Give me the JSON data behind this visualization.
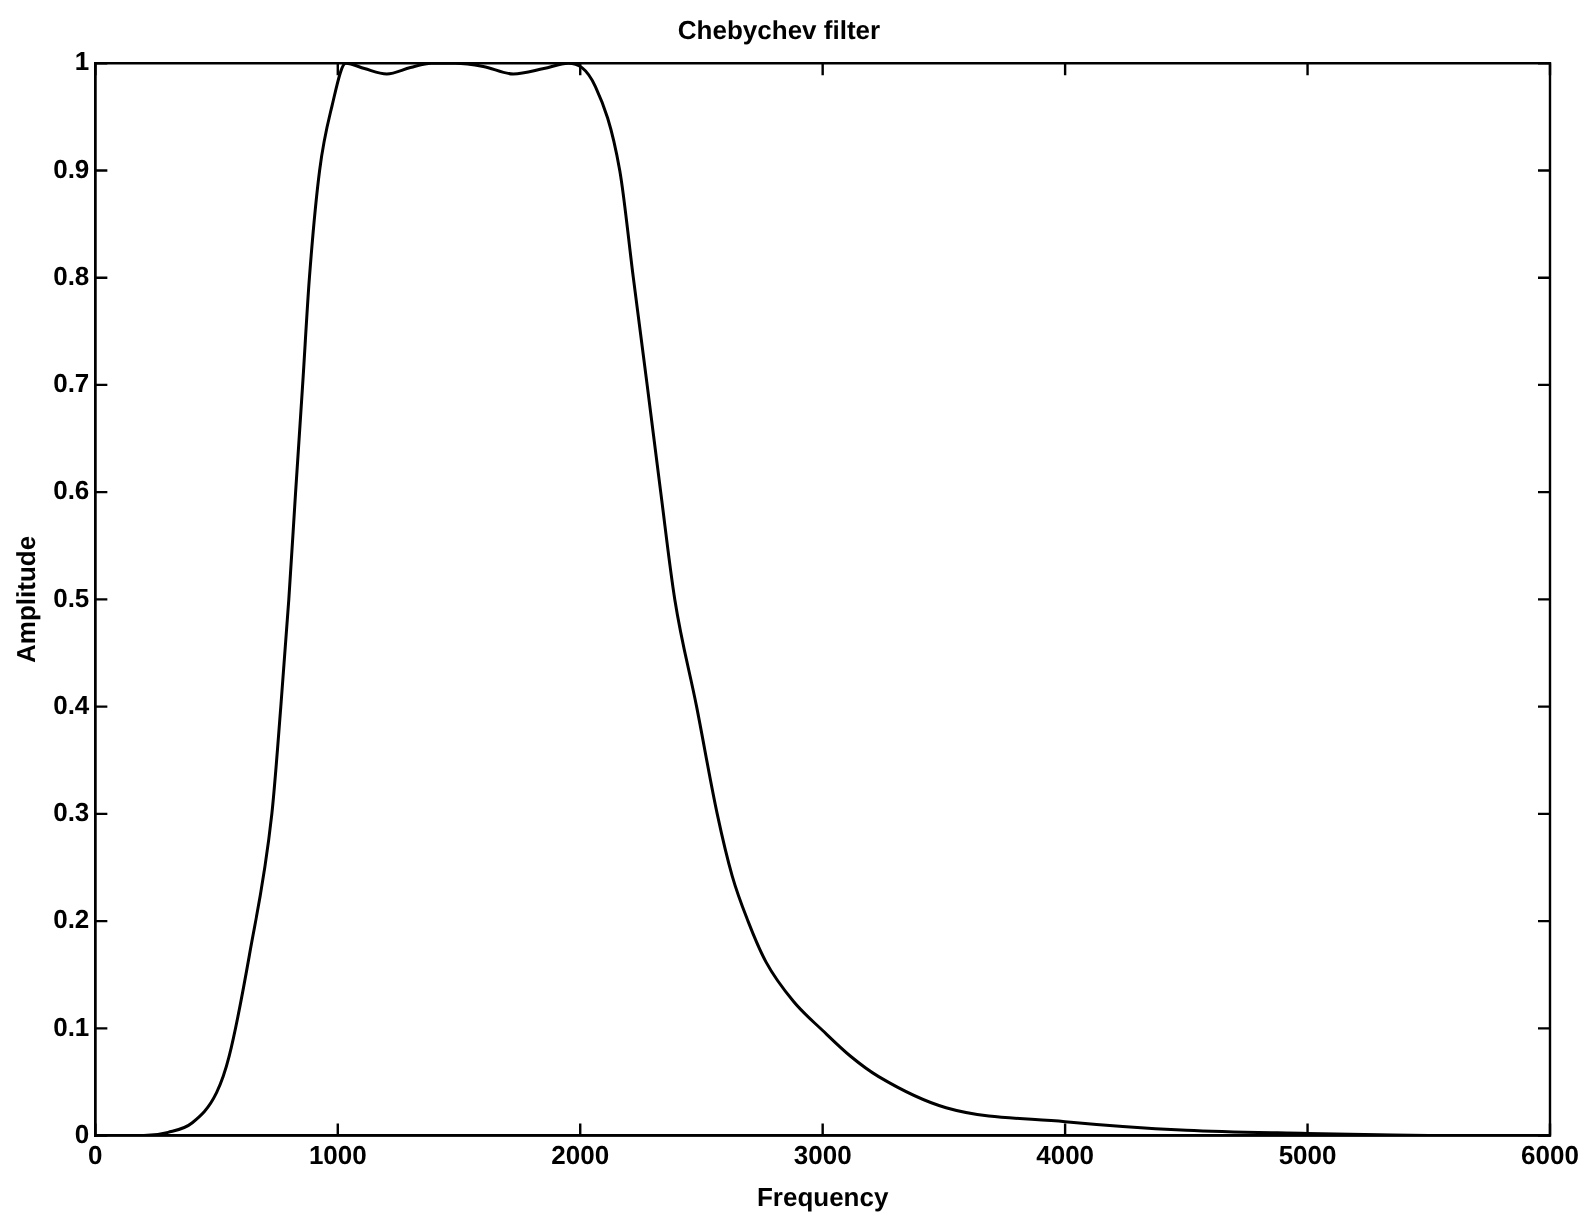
{
  "chart_data": {
    "type": "line",
    "title": "Chebychev filter",
    "xlabel": "Frequency",
    "ylabel": "Amplitude",
    "x": [
      0,
      200,
      300,
      400,
      500,
      552,
      636,
      728,
      765,
      798,
      826,
      855,
      883,
      925,
      976,
      1033,
      1110,
      1202,
      1300,
      1386,
      1484,
      1600,
      1724,
      1850,
      1951,
      2063,
      2163,
      2219,
      2276,
      2332,
      2390,
      2480,
      2565,
      2627,
      2692,
      2766,
      2880,
      3000,
      3115,
      3231,
      3509,
      4000,
      4500,
      5000,
      5500
    ],
    "series": [
      {
        "color": "#000000",
        "values": [
          0,
          0,
          0.003,
          0.012,
          0.04,
          0.074,
          0.169,
          0.3,
          0.4,
          0.5,
          0.6,
          0.7,
          0.8,
          0.9,
          0.96,
          1,
          0.995,
          0.99,
          0.996,
          1,
          1,
          0.997,
          0.99,
          0.995,
          1,
          0.978,
          0.9,
          0.8,
          0.7,
          0.6,
          0.5,
          0.4,
          0.3,
          0.242,
          0.2,
          0.162,
          0.125,
          0.098,
          0.074,
          0.055,
          0.026,
          0.013,
          0.005,
          0.002,
          0
        ]
      }
    ],
    "xlim": [
      0,
      6000
    ],
    "xticks": [
      0,
      1000,
      2000,
      3000,
      4000,
      5000,
      6000
    ],
    "ylim": [
      0,
      1
    ],
    "yticks": [
      0,
      0.1,
      0.2,
      0.3,
      0.4,
      0.5,
      0.6,
      0.7,
      0.8,
      0.9,
      1
    ],
    "grid": false,
    "legend": false,
    "marker": "none",
    "line_style": "solid"
  }
}
